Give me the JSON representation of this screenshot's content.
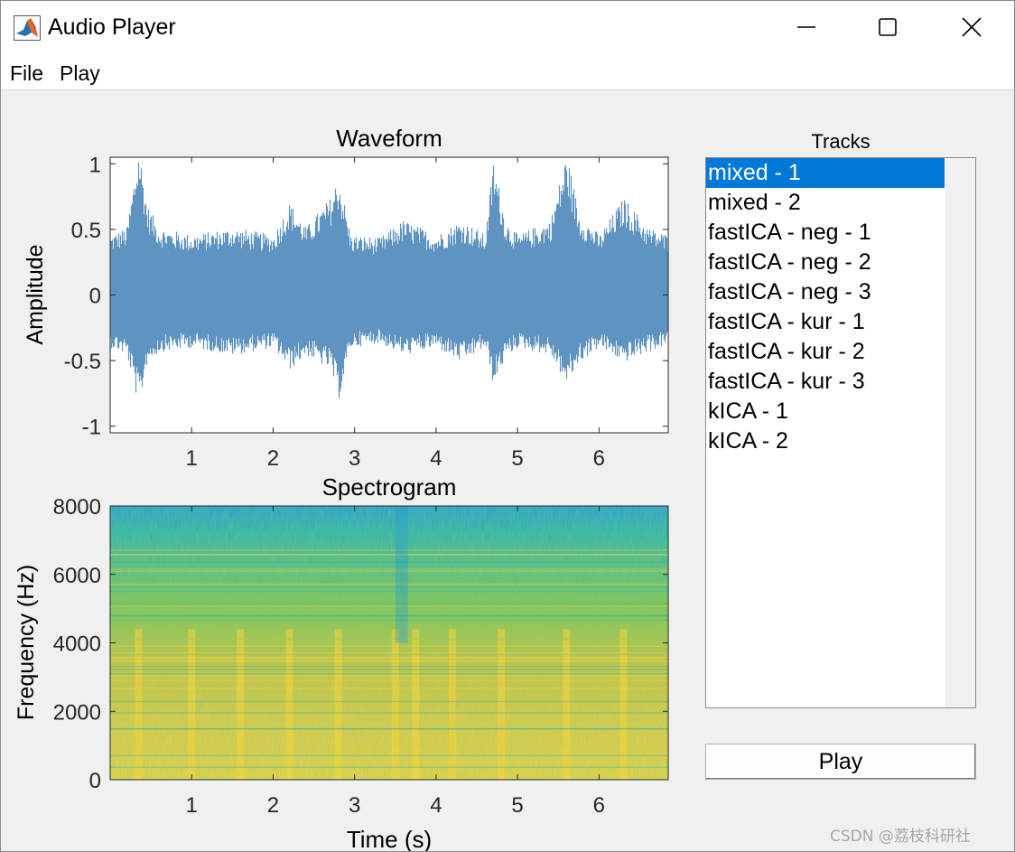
{
  "window": {
    "title": "Audio Player",
    "icon": "matlab-logo-icon",
    "controls": [
      "minimize-icon",
      "maximize-icon",
      "close-icon"
    ]
  },
  "menu": {
    "items": [
      "File",
      "Play"
    ]
  },
  "tracks": {
    "label": "Tracks",
    "items": [
      "mixed - 1",
      "mixed - 2",
      "fastICA - neg - 1",
      "fastICA - neg - 2",
      "fastICA - neg - 3",
      "fastICA - kur - 1",
      "fastICA - kur - 2",
      "fastICA - kur - 3",
      "kICA - 1",
      "kICA - 2"
    ],
    "selected_index": 0,
    "selection_color": "#0078d7"
  },
  "play_button": {
    "label": "Play"
  },
  "watermark": "CSDN @荔枝科研社",
  "chart_data": [
    {
      "type": "line",
      "title": "Waveform",
      "xlabel": "",
      "ylabel": "Amplitude",
      "xlim": [
        0,
        6.85
      ],
      "ylim": [
        -1.05,
        1.05
      ],
      "xticks": [
        1,
        2,
        3,
        4,
        5,
        6
      ],
      "xtick_labels": [
        "1",
        "2",
        "3",
        "4",
        "5",
        "6"
      ],
      "yticks": [
        1,
        0.5,
        0,
        -0.5,
        -1
      ],
      "ytick_labels": [
        "1",
        "0.5",
        "0",
        "-0.5",
        "-1"
      ],
      "color": "#5f93c1",
      "envelope": {
        "time": [
          0,
          0.2,
          0.35,
          0.45,
          0.6,
          1.0,
          1.5,
          2.0,
          2.2,
          2.4,
          2.7,
          2.8,
          2.95,
          3.3,
          3.6,
          4.0,
          4.3,
          4.6,
          4.7,
          4.85,
          5.0,
          5.4,
          5.6,
          5.75,
          6.0,
          6.3,
          6.6,
          6.85
        ],
        "upper": [
          0.4,
          0.45,
          1.0,
          0.6,
          0.45,
          0.4,
          0.45,
          0.4,
          0.62,
          0.45,
          0.65,
          0.8,
          0.4,
          0.38,
          0.5,
          0.4,
          0.5,
          0.4,
          0.9,
          0.5,
          0.4,
          0.5,
          0.95,
          0.55,
          0.4,
          0.65,
          0.45,
          0.4
        ],
        "lower": [
          -0.35,
          -0.4,
          -0.75,
          -0.45,
          -0.38,
          -0.35,
          -0.4,
          -0.35,
          -0.5,
          -0.4,
          -0.5,
          -0.7,
          -0.35,
          -0.32,
          -0.4,
          -0.35,
          -0.45,
          -0.35,
          -0.6,
          -0.42,
          -0.35,
          -0.4,
          -0.6,
          -0.45,
          -0.35,
          -0.45,
          -0.38,
          -0.33
        ]
      }
    },
    {
      "type": "heatmap",
      "title": "Spectrogram",
      "xlabel": "Time (s)",
      "ylabel": "Frequency (Hz)",
      "xlim": [
        0,
        6.85
      ],
      "ylim": [
        0,
        8000
      ],
      "xticks": [
        1,
        2,
        3,
        4,
        5,
        6
      ],
      "xtick_labels": [
        "1",
        "2",
        "3",
        "4",
        "5",
        "6"
      ],
      "yticks": [
        0,
        2000,
        4000,
        6000,
        8000
      ],
      "ytick_labels": [
        "0",
        "2000",
        "4000",
        "6000",
        "8000"
      ],
      "colormap": [
        "#1f9bd8",
        "#2bb3a8",
        "#7fc44e",
        "#d2c235",
        "#f5d43a"
      ]
    }
  ]
}
